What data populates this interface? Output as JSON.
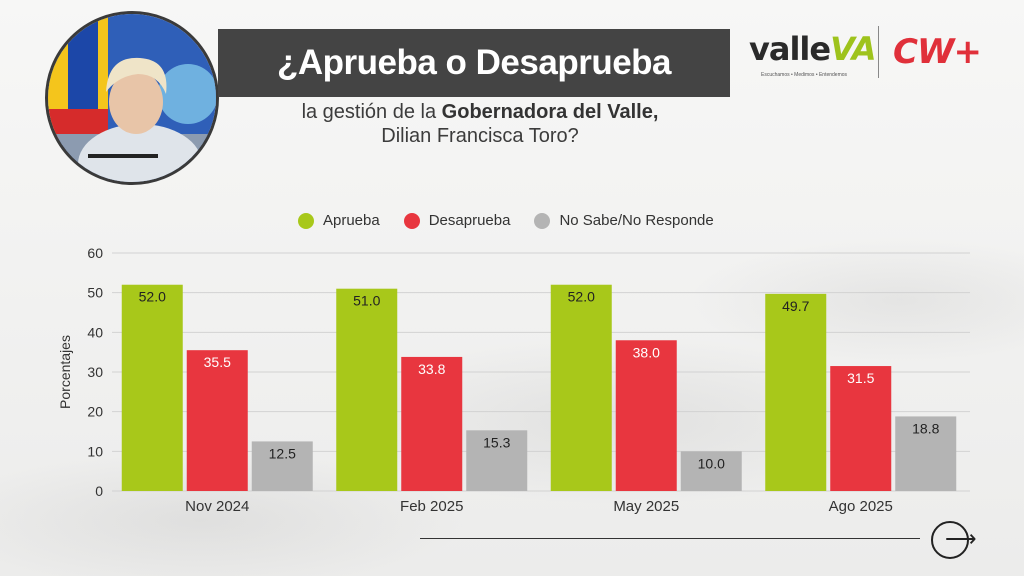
{
  "header": {
    "title": "¿Aprueba o Desaprueba",
    "subtitle_pre": "la gestión de la ",
    "subtitle_bold": "Gobernadora del Valle,",
    "subtitle_line2": "Dilian Francisca Toro?"
  },
  "logos": {
    "valle_word": "valle",
    "valle_accent": "VA",
    "valle_tagline": "Escuchamos • Medimos • Entendemos",
    "cw": "CW+"
  },
  "colors": {
    "aprueba": "#a8c81a",
    "desaprueba": "#e8363f",
    "nosabe": "#b4b4b4",
    "title_bg": "#444444",
    "cw_red": "#e0303a"
  },
  "icons": {
    "next": "arrow-right-circle-icon"
  },
  "chart_data": {
    "type": "bar",
    "ylabel": "Porcentajes",
    "ylim": [
      0,
      60
    ],
    "yticks": [
      0,
      10,
      20,
      30,
      40,
      50,
      60
    ],
    "grid": true,
    "legend_position": "top",
    "categories": [
      "Nov 2024",
      "Feb 2025",
      "May 2025",
      "Ago 2025"
    ],
    "series": [
      {
        "name": "Aprueba",
        "color": "#a8c81a",
        "values": [
          52.0,
          51.0,
          52.0,
          49.7
        ],
        "labels": [
          "52.0",
          "51.0",
          "52.0",
          "49.7"
        ]
      },
      {
        "name": "Desaprueba",
        "color": "#e8363f",
        "values": [
          35.5,
          33.8,
          38.0,
          31.5
        ],
        "labels": [
          "35.5",
          "33.8",
          "38.0",
          "31.5"
        ]
      },
      {
        "name": "No Sabe/No Responde",
        "color": "#b4b4b4",
        "values": [
          12.5,
          15.3,
          10.0,
          18.8
        ],
        "labels": [
          "12.5",
          "15.3",
          "10.0",
          "18.8"
        ]
      }
    ]
  }
}
